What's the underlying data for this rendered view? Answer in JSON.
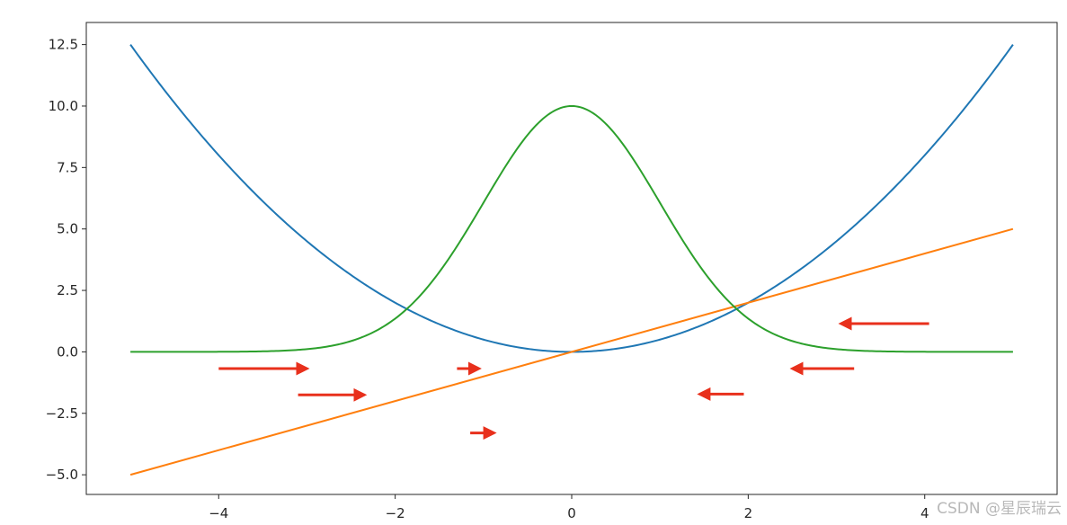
{
  "chart_data": {
    "type": "line",
    "title": "",
    "xlabel": "",
    "ylabel": "",
    "xlim": [
      -5.5,
      5.5
    ],
    "ylim": [
      -5.8,
      13.4
    ],
    "grid": false,
    "x_ticks": [
      -4,
      -2,
      0,
      2,
      4
    ],
    "y_ticks": [
      -5.0,
      -2.5,
      0.0,
      2.5,
      5.0,
      7.5,
      10.0,
      12.5
    ],
    "x_tick_labels": [
      "−4",
      "−2",
      "0",
      "2",
      "4"
    ],
    "y_tick_labels": [
      "−5.0",
      "−2.5",
      "0.0",
      "2.5",
      "5.0",
      "7.5",
      "10.0",
      "12.5"
    ],
    "series": [
      {
        "color": "#1f77b4",
        "x": [
          -5,
          -4.5,
          -4,
          -3.5,
          -3,
          -2.5,
          -2,
          -1.5,
          -1,
          -0.5,
          0,
          0.5,
          1,
          1.5,
          2,
          2.5,
          3,
          3.5,
          4,
          4.5,
          5
        ],
        "y": [
          12.5,
          10.125,
          8.0,
          6.125,
          4.5,
          3.125,
          2.0,
          1.125,
          0.5,
          0.125,
          0.0,
          0.125,
          0.5,
          1.125,
          2.0,
          3.125,
          4.5,
          6.125,
          8.0,
          10.125,
          12.5
        ]
      },
      {
        "color": "#ff7f0e",
        "x": [
          -5,
          5
        ],
        "y": [
          -5,
          5
        ]
      },
      {
        "color": "#2ca02c",
        "x": [
          -5,
          -4.5,
          -4,
          -3.5,
          -3,
          -2.5,
          -2,
          -1.75,
          -1.5,
          -1.25,
          -1,
          -0.75,
          -0.5,
          -0.25,
          0,
          0.25,
          0.5,
          0.75,
          1,
          1.25,
          1.5,
          1.75,
          2,
          2.5,
          3,
          3.5,
          4,
          4.5,
          5
        ],
        "y": [
          0.0,
          0.0,
          0.003,
          0.022,
          0.111,
          0.439,
          1.353,
          2.163,
          3.247,
          4.578,
          6.065,
          7.548,
          8.825,
          9.692,
          10.0,
          9.692,
          8.825,
          7.548,
          6.065,
          4.578,
          3.247,
          2.163,
          1.353,
          0.439,
          0.111,
          0.022,
          0.003,
          0.0,
          0.0
        ]
      }
    ],
    "annotations": {
      "arrow_color": "#e8301c",
      "arrows": [
        {
          "x_from": -4.0,
          "x_to": -3.0,
          "y": -0.68
        },
        {
          "x_from": -3.1,
          "x_to": -2.35,
          "y": -1.75
        },
        {
          "x_from": -1.3,
          "x_to": -1.05,
          "y": -0.68
        },
        {
          "x_from": -1.15,
          "x_to": -0.88,
          "y": -3.3
        },
        {
          "x_from": 1.95,
          "x_to": 1.45,
          "y": -1.72
        },
        {
          "x_from": 3.2,
          "x_to": 2.5,
          "y": -0.68
        },
        {
          "x_from": 4.05,
          "x_to": 3.05,
          "y": 1.15
        }
      ]
    }
  },
  "watermark": "CSDN @星辰瑞云"
}
